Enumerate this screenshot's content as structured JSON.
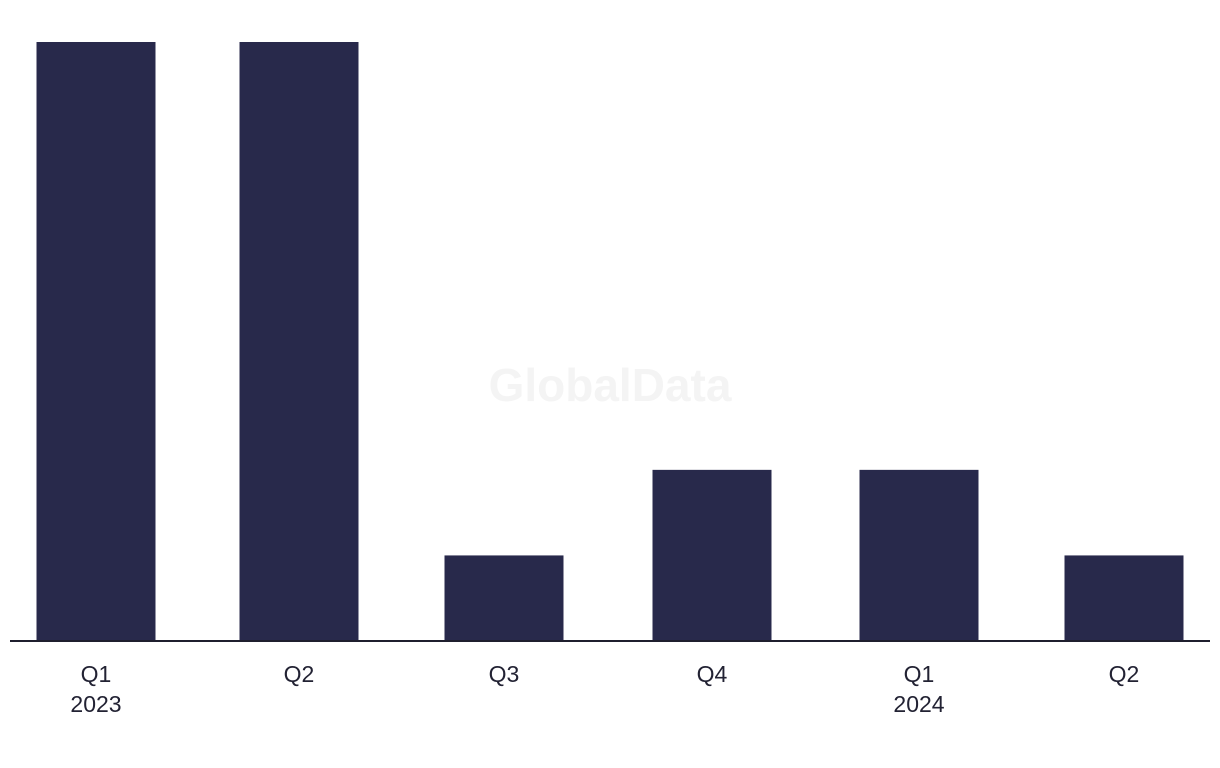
{
  "watermark": "GlobalData",
  "colors": {
    "bar": "#28294b",
    "axis": "#1f1f2e",
    "text": "#222233",
    "watermark": "#f4f4f4",
    "background": "#ffffff"
  },
  "chart_data": {
    "type": "bar",
    "title": "",
    "xlabel": "",
    "ylabel": "",
    "grid": false,
    "legend": "none",
    "categories": [
      "Q1 2023",
      "Q2 2023",
      "Q3 2023",
      "Q4 2023",
      "Q1 2024",
      "Q2 2024"
    ],
    "tick_labels": [
      {
        "line1": "Q1",
        "line2": "2023"
      },
      {
        "line1": "Q2",
        "line2": ""
      },
      {
        "line1": "Q3",
        "line2": ""
      },
      {
        "line1": "Q4",
        "line2": ""
      },
      {
        "line1": "Q1",
        "line2": "2024"
      },
      {
        "line1": "Q2",
        "line2": ""
      }
    ],
    "values": [
      7,
      7,
      1,
      2,
      2,
      1
    ],
    "ylim": [
      0,
      7
    ]
  }
}
